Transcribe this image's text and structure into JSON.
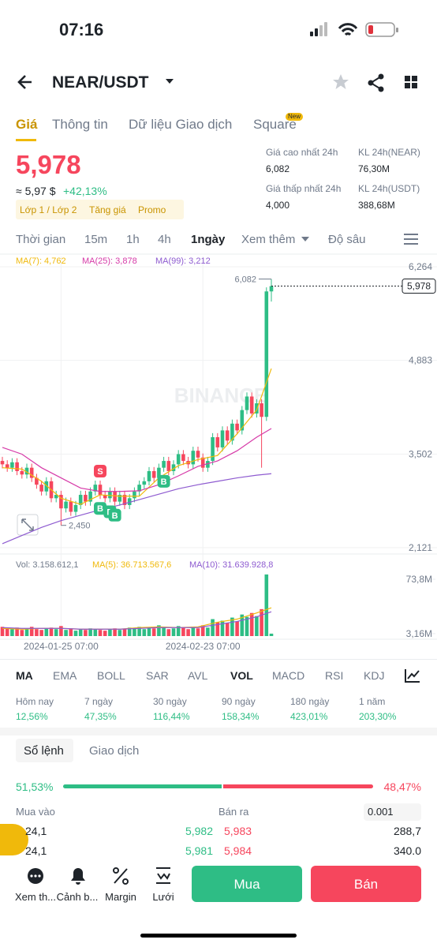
{
  "status": {
    "time": "07:16"
  },
  "header": {
    "pair": "NEAR/USDT"
  },
  "tabs": [
    "Giá",
    "Thông tin",
    "Dữ liệu Giao dịch",
    "Square"
  ],
  "tab_badge": "New",
  "price": {
    "last": "5,978",
    "approx": "≈ 5,97 $",
    "change": "+42,13%",
    "tags": [
      "Lớp 1 / Lớp 2",
      "Tăng giá",
      "Promo"
    ]
  },
  "stats": [
    {
      "label": "Giá cao nhất 24h",
      "value": "6,082"
    },
    {
      "label": "KL 24h(NEAR)",
      "value": "76,30M"
    },
    {
      "label": "Giá thấp nhất 24h",
      "value": "4,000"
    },
    {
      "label": "KL 24h(USDT)",
      "value": "388,68M"
    }
  ],
  "intervals": [
    "Thời gian",
    "15m",
    "1h",
    "4h",
    "1ngày",
    "Xem thêm",
    "Độ sâu"
  ],
  "chart_data": {
    "type": "candlestick",
    "watermark": "BINANCE",
    "up_color": "#2ebd85",
    "down_color": "#f6465d",
    "open": [
      3400,
      3350,
      3300,
      3380,
      3250,
      3200,
      3300,
      3150,
      3050,
      2950,
      3100,
      2850,
      2900,
      2700,
      2800,
      2650,
      2750,
      2900,
      2800,
      2950,
      3050,
      2900,
      2850,
      2950,
      2800,
      2900,
      2750,
      2850,
      2950,
      3050,
      3100,
      3250,
      3150,
      3300,
      3400,
      3250,
      3350,
      3500,
      3400,
      3350,
      3550,
      3450,
      3300,
      3400,
      3750,
      3600,
      3850,
      3700,
      3950,
      3850,
      4150,
      4350,
      4100,
      4250,
      4050,
      5900
    ],
    "high": [
      3460,
      3410,
      3440,
      3440,
      3310,
      3360,
      3360,
      3210,
      3110,
      3160,
      3160,
      2960,
      2960,
      2860,
      2860,
      2810,
      2960,
      2960,
      3010,
      3110,
      3110,
      2960,
      3010,
      3010,
      2960,
      2960,
      2910,
      3010,
      3110,
      3160,
      3310,
      3310,
      3360,
      3460,
      3460,
      3410,
      3560,
      3560,
      3460,
      3610,
      3610,
      3510,
      3460,
      3810,
      3810,
      3910,
      3910,
      4010,
      4010,
      4210,
      4410,
      4410,
      4310,
      4310,
      5960,
      6082
    ],
    "low": [
      3290,
      3240,
      3240,
      3190,
      3140,
      3140,
      3090,
      2990,
      2890,
      2890,
      2790,
      2790,
      2450,
      2640,
      2590,
      2590,
      2690,
      2740,
      2740,
      2890,
      2840,
      2790,
      2790,
      2740,
      2740,
      2690,
      2690,
      2790,
      2890,
      2990,
      3040,
      3090,
      3090,
      3240,
      3190,
      3190,
      3290,
      3340,
      3290,
      3290,
      3390,
      3240,
      3240,
      3340,
      3540,
      3540,
      3640,
      3640,
      3790,
      3790,
      4090,
      4040,
      4040,
      3300,
      3990,
      5750
    ],
    "close": [
      3350,
      3300,
      3380,
      3250,
      3200,
      3300,
      3150,
      3050,
      2950,
      3100,
      2850,
      2900,
      2700,
      2800,
      2650,
      2750,
      2900,
      2800,
      2950,
      3050,
      2900,
      2850,
      2950,
      2800,
      2900,
      2750,
      2850,
      2950,
      3050,
      3100,
      3250,
      3150,
      3300,
      3400,
      3250,
      3350,
      3500,
      3400,
      3350,
      3550,
      3450,
      3300,
      3400,
      3750,
      3600,
      3850,
      3700,
      3950,
      3850,
      4150,
      4350,
      4100,
      4250,
      4050,
      5900,
      5978
    ],
    "ylim": [
      2051,
      6415
    ],
    "yticks": [
      {
        "value": 2121,
        "label": "2,121"
      },
      {
        "value": 3502,
        "label": "3,502"
      },
      {
        "value": 4883,
        "label": "4,883"
      },
      {
        "value": 6264,
        "label": "6,264"
      }
    ],
    "xticks": [
      {
        "value": 12,
        "label": "2024-01-25 07:00"
      },
      {
        "value": 41,
        "label": "2024-02-23 07:00"
      }
    ],
    "high_label": "6,082",
    "low_label": "2,450",
    "last_label": "5,978",
    "markers": [
      {
        "index": 20,
        "label": "S"
      },
      {
        "index": 20,
        "label": "B"
      },
      {
        "index": 22,
        "label": "B"
      },
      {
        "index": 23,
        "label": "B"
      },
      {
        "index": 33,
        "label": "B"
      }
    ],
    "ma_x": [
      0,
      4,
      8,
      12,
      16,
      20,
      24,
      28,
      32,
      36,
      40,
      44,
      48,
      52,
      55
    ],
    "ma": [
      {
        "name": "MA(7): 4,762",
        "color": "#f0b90b",
        "values": [
          3300,
          3280,
          3100,
          2850,
          2760,
          2900,
          2880,
          2880,
          3150,
          3330,
          3420,
          3480,
          3800,
          4150,
          4762
        ]
      },
      {
        "name": "MA(25): 3,878",
        "color": "#d63aa8",
        "values": [
          3600,
          3500,
          3300,
          3150,
          3000,
          2950,
          2950,
          2960,
          3050,
          3180,
          3320,
          3400,
          3550,
          3750,
          3878
        ]
      },
      {
        "name": "MA(99): 3,212",
        "color": "#8e5bd0",
        "values": [
          2180,
          2300,
          2420,
          2520,
          2600,
          2680,
          2750,
          2830,
          2910,
          2990,
          3050,
          3100,
          3150,
          3190,
          3212
        ]
      }
    ],
    "volume": {
      "label": "Vol: 3.158.612,1",
      "values": [
        12,
        10,
        9,
        11,
        8,
        10,
        12,
        9,
        8,
        10,
        11,
        9,
        13,
        8,
        10,
        7,
        9,
        8,
        10,
        9,
        8,
        7,
        9,
        10,
        8,
        9,
        11,
        10,
        12,
        9,
        11,
        10,
        14,
        12,
        9,
        10,
        13,
        11,
        9,
        12,
        10,
        14,
        11,
        22,
        18,
        20,
        17,
        24,
        19,
        28,
        25,
        30,
        26,
        35,
        80,
        3.16
      ],
      "ylim": [
        0,
        83
      ],
      "yticks": [
        {
          "value": 3.16,
          "label": "3,16M"
        },
        {
          "value": 73.8,
          "label": "73,8M"
        }
      ],
      "ma": [
        {
          "name": "MA(5): 36.713.567,6",
          "color": "#f0b90b",
          "values": [
            10,
            9,
            10,
            10,
            9,
            9,
            9,
            11,
            12,
            11,
            12,
            18,
            22,
            30,
            36.7
          ]
        },
        {
          "name": "MA(10): 31.639.928,8",
          "color": "#8e5bd0",
          "values": [
            11,
            10,
            10,
            10,
            9,
            9,
            9,
            10,
            11,
            11,
            11,
            15,
            19,
            25,
            31.6
          ]
        }
      ]
    }
  },
  "indicators": [
    "MA",
    "EMA",
    "BOLL",
    "SAR",
    "AVL",
    "VOL",
    "MACD",
    "RSI",
    "KDJ"
  ],
  "performance": [
    {
      "label": "Hôm nay",
      "value": "12,56%"
    },
    {
      "label": "7 ngày",
      "value": "47,35%"
    },
    {
      "label": "30 ngày",
      "value": "116,44%"
    },
    {
      "label": "90 ngày",
      "value": "158,34%"
    },
    {
      "label": "180 ngày",
      "value": "423,01%"
    },
    {
      "label": "1 năm",
      "value": "203,30%"
    }
  ],
  "orderbook": {
    "tabs": [
      "Sổ lệnh",
      "Giao dịch"
    ],
    "buy_pct": {
      "value": 51.53,
      "label": "51,53%"
    },
    "sell_pct": {
      "value": 48.47,
      "label": "48,47%"
    },
    "buy_label": "Mua vào",
    "sell_label": "Bán ra",
    "step": "0.001",
    "rows": [
      [
        "24,1",
        "5,982",
        "5,983",
        "288,7"
      ],
      [
        "24,1",
        "5,981",
        "5,984",
        "340.0"
      ]
    ]
  },
  "bottom": {
    "items": [
      "Xem th...",
      "Cảnh b...",
      "Margin",
      "Lưới"
    ],
    "buy": "Mua",
    "sell": "Bán"
  }
}
